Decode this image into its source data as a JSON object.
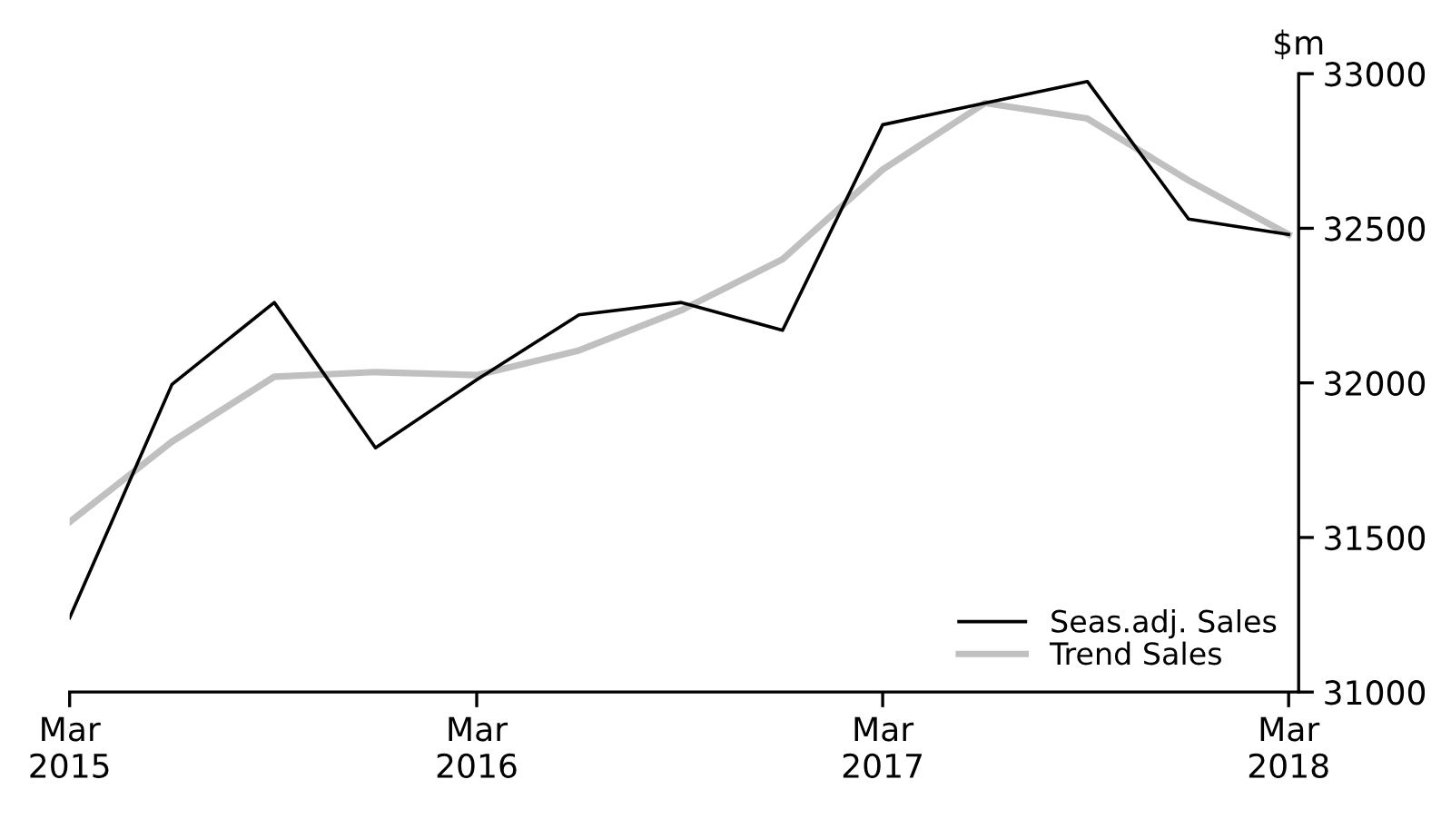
{
  "chart_data": {
    "type": "line",
    "ylabel": "$m",
    "x": [
      "2015-03",
      "2015-06",
      "2015-09",
      "2015-12",
      "2016-03",
      "2016-06",
      "2016-09",
      "2016-12",
      "2017-03",
      "2017-06",
      "2017-09",
      "2017-12",
      "2018-03"
    ],
    "series": [
      {
        "name": "Seas.adj. Sales",
        "color": "#000000",
        "values": [
          31240,
          31995,
          32260,
          31790,
          32010,
          32220,
          32260,
          32170,
          32835,
          32905,
          32975,
          32530,
          32480
        ]
      },
      {
        "name": "Trend Sales",
        "color": "#c0c0c0",
        "values": [
          31550,
          31810,
          32020,
          32035,
          32025,
          32105,
          32235,
          32400,
          32690,
          32905,
          32855,
          32655,
          32480
        ]
      }
    ],
    "xlim": [
      "2015-03",
      "2018-03-10"
    ],
    "xticks": [
      {
        "value": "2015-03",
        "label": "Mar\n2015"
      },
      {
        "value": "2016-03",
        "label": "Mar\n2016"
      },
      {
        "value": "2017-03",
        "label": "Mar\n2017"
      },
      {
        "value": "2018-03",
        "label": "Mar\n2018"
      }
    ],
    "ylim": [
      31000,
      33000
    ],
    "yticks": [
      31000,
      31500,
      32000,
      32500,
      33000
    ],
    "legend": "bottom right",
    "grid": false
  }
}
